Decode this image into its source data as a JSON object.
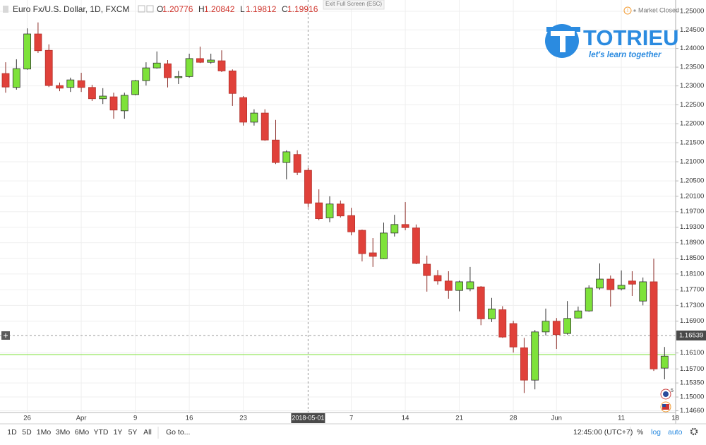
{
  "header": {
    "title": "Euro Fx/U.S. Dollar, 1D, FXCM",
    "ohlc_letters": [
      "O",
      "H",
      "L",
      "C"
    ],
    "ohlc_values": [
      1.20776,
      1.20842,
      1.19812,
      1.19916
    ]
  },
  "exit_fullscreen": "Exit Full Screen (ESC)",
  "market_status": "Market Closed",
  "logo": {
    "name": "TOTRIEU",
    "tagline": "let's learn together"
  },
  "event_count": "5",
  "toolbar": {
    "ranges": [
      "1D",
      "5D",
      "1Mo",
      "3Mo",
      "6Mo",
      "YTD",
      "1Y",
      "5Y",
      "All"
    ],
    "goto": "Go to...",
    "time": "12:45:00 (UTC+7)",
    "percent": "%",
    "log": "log",
    "auto": "auto"
  },
  "chart_data": {
    "type": "candlestick",
    "log_scale": true,
    "grid": true,
    "up_color": "#7ee23a",
    "down_color": "#e0413a",
    "categories": [
      null,
      null,
      "26",
      null,
      null,
      null,
      null,
      "Apr",
      null,
      null,
      null,
      null,
      "9",
      null,
      null,
      null,
      null,
      "16",
      null,
      null,
      null,
      null,
      "23",
      null,
      null,
      null,
      null,
      null,
      null,
      null,
      null,
      null,
      "7",
      null,
      null,
      null,
      null,
      "14",
      null,
      null,
      null,
      null,
      "21",
      null,
      null,
      null,
      null,
      "28",
      null,
      null,
      null,
      "Jun",
      null,
      null,
      null,
      null,
      null,
      "11",
      null,
      null,
      null,
      null,
      "18"
    ],
    "open": [
      1.2333,
      1.2296,
      1.2345,
      1.2439,
      1.2395,
      1.2301,
      1.2296,
      1.2314,
      1.2296,
      1.2266,
      1.2271,
      1.2234,
      1.2277,
      1.2314,
      1.2348,
      1.2359,
      1.2322,
      1.2325,
      1.2373,
      1.2363,
      1.2367,
      1.234,
      1.2269,
      1.2204,
      1.2228,
      1.2157,
      1.2098,
      1.2119,
      1.20776,
      1.1993,
      1.1954,
      1.199,
      1.196,
      1.1922,
      1.1864,
      1.1849,
      1.1915,
      1.1937,
      1.1928,
      1.1835,
      1.1806,
      1.1792,
      1.1768,
      1.1772,
      1.1777,
      1.1696,
      1.1719,
      1.1684,
      1.1623,
      1.1542,
      1.1663,
      1.169,
      1.1659,
      1.1698,
      1.1716,
      1.1774,
      1.1797,
      1.1772,
      1.1792,
      1.1741,
      1.179,
      1.1572,
      null
    ],
    "high": [
      1.2363,
      1.2371,
      1.2454,
      1.247,
      1.2411,
      1.2309,
      1.2322,
      1.2335,
      1.2303,
      1.2294,
      1.2282,
      1.2282,
      1.2316,
      1.2363,
      1.2392,
      1.2369,
      1.234,
      1.2386,
      1.2405,
      1.2386,
      1.2395,
      1.2344,
      1.2273,
      1.2238,
      1.2238,
      1.221,
      1.213,
      1.213,
      1.20842,
      1.2028,
      1.201,
      1.1999,
      1.198,
      1.1924,
      1.1902,
      1.1942,
      1.1962,
      1.1995,
      1.1937,
      1.1857,
      1.182,
      1.1817,
      1.1793,
      1.1828,
      1.1779,
      1.1749,
      1.1728,
      1.1691,
      1.1648,
      1.1668,
      1.1722,
      1.1698,
      1.1741,
      1.1727,
      1.1781,
      1.1837,
      1.1806,
      1.1819,
      1.1817,
      1.1801,
      1.1849,
      1.1625,
      null
    ],
    "low": [
      1.2282,
      1.229,
      1.2343,
      1.2388,
      1.2297,
      1.2286,
      1.2284,
      1.2284,
      1.226,
      1.2252,
      1.2213,
      1.2213,
      1.2275,
      1.2301,
      1.2346,
      1.2296,
      1.2305,
      1.2322,
      1.2361,
      1.2359,
      1.2337,
      1.2247,
      1.2195,
      1.2195,
      1.2155,
      1.2094,
      1.2054,
      1.2065,
      1.19812,
      1.1948,
      1.1943,
      1.1955,
      1.1909,
      1.1842,
      1.1828,
      1.1848,
      1.1906,
      1.1922,
      1.1835,
      1.1765,
      1.1783,
      1.1747,
      1.1715,
      1.1766,
      1.168,
      1.1688,
      1.1648,
      1.1611,
      1.151,
      1.1519,
      1.1654,
      1.162,
      1.1656,
      1.1697,
      1.1714,
      1.177,
      1.1727,
      1.1768,
      1.1754,
      1.173,
      1.1565,
      1.1544,
      null
    ],
    "close": [
      1.2297,
      1.2346,
      1.2439,
      1.2394,
      1.2301,
      1.2294,
      1.2316,
      1.2296,
      1.2266,
      1.2273,
      1.2236,
      1.2275,
      1.2314,
      1.2348,
      1.2361,
      1.2322,
      1.2325,
      1.2373,
      1.2363,
      1.2369,
      1.234,
      1.228,
      1.2204,
      1.2228,
      1.2157,
      1.2098,
      1.2126,
      1.2072,
      1.19916,
      1.1952,
      1.199,
      1.1959,
      1.1918,
      1.1862,
      1.1855,
      1.1915,
      1.1937,
      1.1929,
      1.1837,
      1.1806,
      1.1792,
      1.1768,
      1.179,
      1.179,
      1.1696,
      1.1721,
      1.165,
      1.1625,
      1.1542,
      1.1663,
      1.169,
      1.1656,
      1.1697,
      1.1716,
      1.1774,
      1.1797,
      1.177,
      1.1781,
      1.1784,
      1.179,
      1.157,
      1.1602,
      null
    ],
    "ylim": [
      1.14615,
      1.25306
    ],
    "yticks": [
      {
        "value": 1.25,
        "label": "1.25000"
      },
      {
        "value": 1.245,
        "label": "1.24500"
      },
      {
        "value": 1.24,
        "label": "1.24000"
      },
      {
        "value": 1.235,
        "label": "1.23500"
      },
      {
        "value": 1.23,
        "label": "1.23000"
      },
      {
        "value": 1.225,
        "label": "1.22500"
      },
      {
        "value": 1.22,
        "label": "1.22000"
      },
      {
        "value": 1.215,
        "label": "1.21500"
      },
      {
        "value": 1.21,
        "label": "1.21000"
      },
      {
        "value": 1.205,
        "label": "1.20500"
      },
      {
        "value": 1.201,
        "label": "1.20100"
      },
      {
        "value": 1.197,
        "label": "1.19700"
      },
      {
        "value": 1.193,
        "label": "1.19300"
      },
      {
        "value": 1.189,
        "label": "1.18900"
      },
      {
        "value": 1.185,
        "label": "1.18500"
      },
      {
        "value": 1.181,
        "label": "1.18100"
      },
      {
        "value": 1.177,
        "label": "1.17700"
      },
      {
        "value": 1.173,
        "label": "1.17300"
      },
      {
        "value": 1.169,
        "label": "1.16900"
      },
      {
        "value": 1.161,
        "label": "1.16100"
      },
      {
        "value": 1.157,
        "label": "1.15700"
      },
      {
        "value": 1.1535,
        "label": "1.15350"
      },
      {
        "value": 1.15,
        "label": "1.15000"
      },
      {
        "value": 1.1466,
        "label": "1.14660"
      }
    ],
    "last_price_line": 1.1606,
    "last_price_color": "#7ee23a",
    "crosshair": {
      "date": "2018-05-01",
      "price": {
        "value": 1.16539,
        "label": "1.16539"
      }
    }
  }
}
